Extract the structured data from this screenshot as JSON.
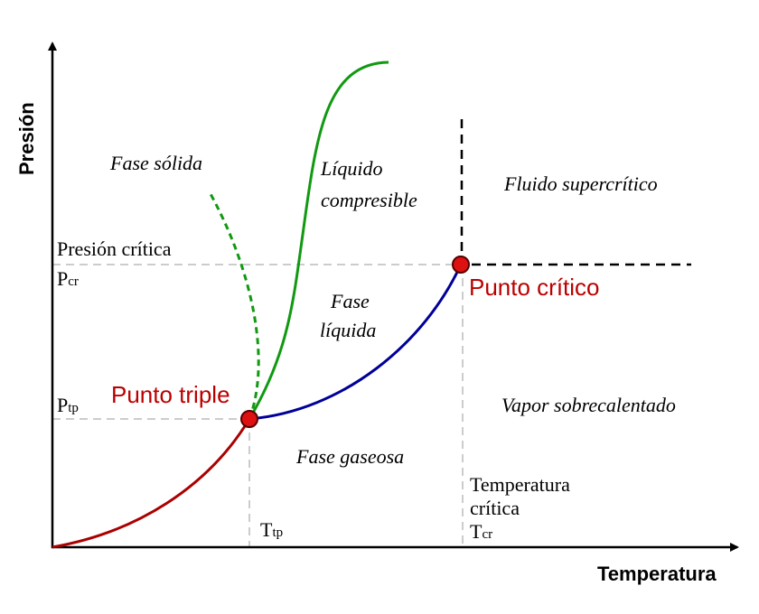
{
  "axes": {
    "x_label": "Temperatura",
    "y_label": "Presión"
  },
  "regions": {
    "solid": "Fase sólida",
    "compressible_line1": "Líquido",
    "compressible_line2": "compresible",
    "supercritical": "Fluido supercrítico",
    "liquid_line1": "Fase",
    "liquid_line2": "líquida",
    "superheated_vapor": "Vapor sobrecalentado",
    "gas": "Fase gaseosa"
  },
  "points": {
    "triple": "Punto triple",
    "critical": "Punto crítico"
  },
  "markers": {
    "p_cr_title": "Presión crítica",
    "p_cr_symbol": "P",
    "p_cr_sub": "cr",
    "p_tp_symbol": "P",
    "p_tp_sub": "tp",
    "t_tp_symbol": "T",
    "t_tp_sub": "tp",
    "t_cr_title_line1": "Temperatura",
    "t_cr_title_line2": "crítica",
    "t_cr_symbol": "T",
    "t_cr_sub": "cr"
  },
  "colors": {
    "sublimation_curve": "#aa0000",
    "vaporization_curve": "#000099",
    "melting_curve": "#119911",
    "anomalous_melting_curve": "#119911",
    "point_fill": "#dd1111",
    "point_label": "#bb0000",
    "guide_lines": "#cccccc",
    "boundary_lines": "#000000"
  }
}
